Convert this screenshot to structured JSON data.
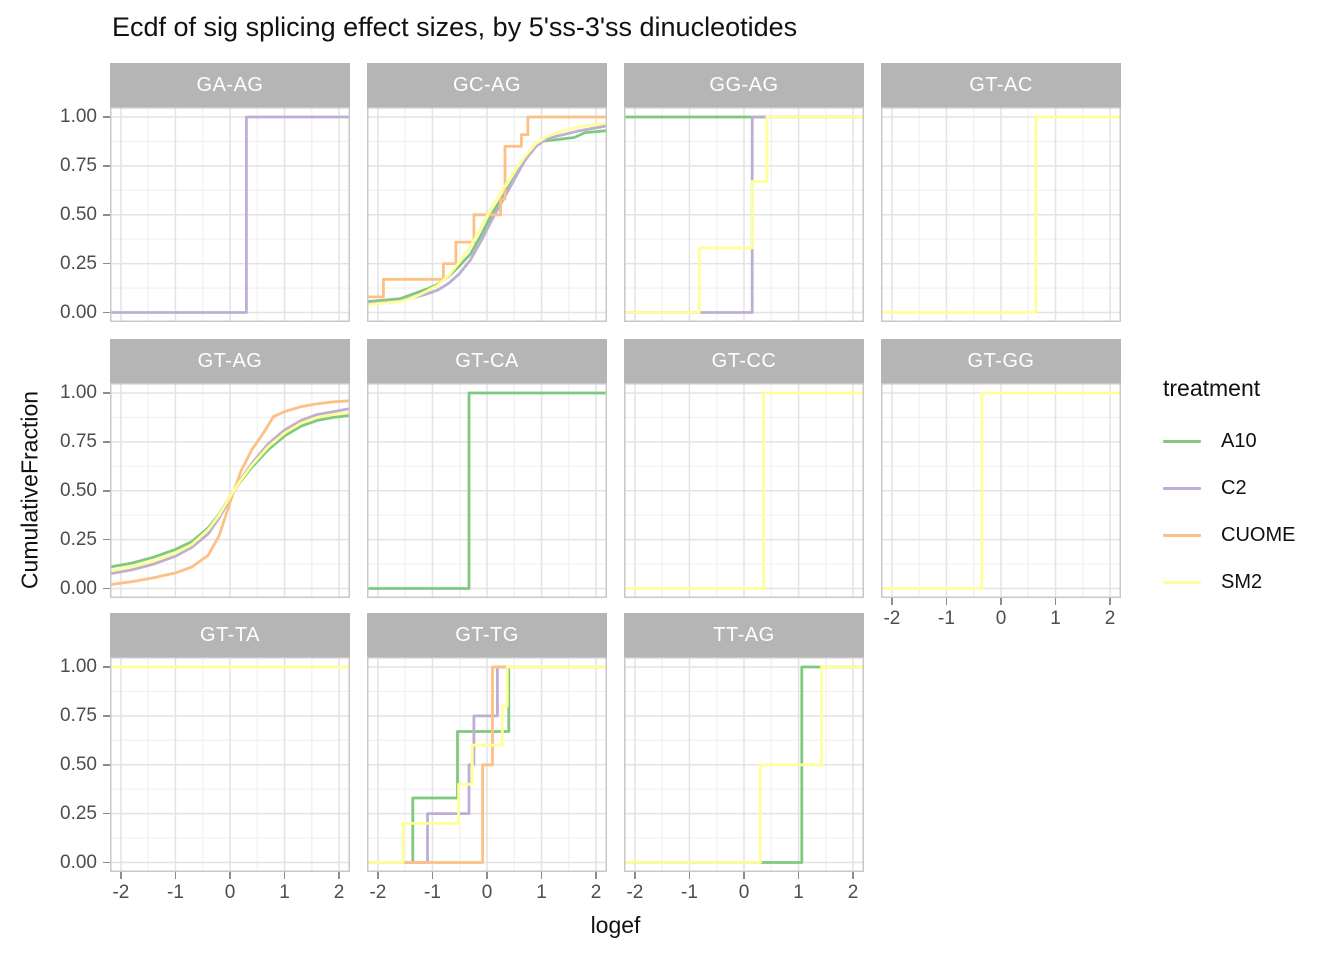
{
  "title": "Ecdf of sig splicing effect sizes, by 5'ss-3'ss dinucleotides",
  "axes": {
    "x_label": "logef",
    "y_label": "CumulativeFraction",
    "x_tick_values": [
      -2,
      -1,
      0,
      1,
      2
    ],
    "x_tick_labels": [
      "-2",
      "-1",
      "0",
      "1",
      "2"
    ],
    "x_minor_values": [
      -1.5,
      -0.5,
      0.5,
      1.5
    ],
    "y_tick_values": [
      0,
      0.25,
      0.5,
      0.75,
      1
    ],
    "y_tick_labels": [
      "0.00",
      "0.25",
      "0.50",
      "0.75",
      "1.00"
    ],
    "y_minor_values": [
      0.125,
      0.375,
      0.625,
      0.875
    ],
    "x_range": [
      -2.2,
      2.2
    ],
    "y_range": [
      0,
      1
    ]
  },
  "legend": {
    "title": "treatment",
    "entries": [
      {
        "label": "A10",
        "color": "#7fc97f"
      },
      {
        "label": "C2",
        "color": "#beaed4"
      },
      {
        "label": "CUOME",
        "color": "#fdc086"
      },
      {
        "label": "SM2",
        "color": "#ffff99"
      }
    ]
  },
  "colors": {
    "A10": "#7fc97f",
    "C2": "#beaed4",
    "CUOME": "#fdc086",
    "SM2": "#ffff99",
    "strip_background": "#b5b5b5",
    "strip_text": "#ffffff",
    "grid_major": "#e3e3e3",
    "grid_minor": "#f0f0f0",
    "panel_border": "#c8c8c8",
    "tick_text": "#4d4d4d"
  },
  "chart_data": {
    "type": "line",
    "subtype": "ecdf-step-facets",
    "title": "Ecdf of sig splicing effect sizes, by 5'ss-3'ss dinucleotides",
    "xlabel": "logef",
    "ylabel": "CumulativeFraction",
    "xlim": [
      -2.2,
      2.2
    ],
    "ylim": [
      0,
      1
    ],
    "grid": true,
    "legend_position": "right",
    "panels": [
      {
        "facet": "GA-AG",
        "row": 1,
        "col": 1,
        "y_axis": true,
        "series": [
          {
            "name": "C2",
            "kind": "step",
            "start": 0,
            "points": [
              [
                0.3,
                1
              ]
            ]
          }
        ]
      },
      {
        "facet": "GC-AG",
        "row": 1,
        "col": 2,
        "series": [
          {
            "name": "A10",
            "kind": "line",
            "points": [
              [
                -2.2,
                0.055
              ],
              [
                -1.6,
                0.07
              ],
              [
                -1.35,
                0.095
              ],
              [
                -1.1,
                0.12
              ],
              [
                -0.9,
                0.145
              ],
              [
                -0.7,
                0.185
              ],
              [
                -0.5,
                0.24
              ],
              [
                -0.3,
                0.3
              ],
              [
                -0.1,
                0.4
              ],
              [
                0.1,
                0.51
              ],
              [
                0.3,
                0.6
              ],
              [
                0.5,
                0.69
              ],
              [
                0.7,
                0.78
              ],
              [
                0.85,
                0.85
              ],
              [
                1.0,
                0.875
              ],
              [
                1.3,
                0.885
              ],
              [
                1.6,
                0.895
              ],
              [
                1.8,
                0.92
              ],
              [
                2.2,
                0.93
              ]
            ]
          },
          {
            "name": "C2",
            "kind": "line",
            "points": [
              [
                -2.2,
                0.045
              ],
              [
                -1.6,
                0.06
              ],
              [
                -1.35,
                0.075
              ],
              [
                -1.1,
                0.095
              ],
              [
                -0.9,
                0.115
              ],
              [
                -0.7,
                0.15
              ],
              [
                -0.5,
                0.2
              ],
              [
                -0.3,
                0.27
              ],
              [
                -0.1,
                0.37
              ],
              [
                0.1,
                0.48
              ],
              [
                0.3,
                0.58
              ],
              [
                0.5,
                0.68
              ],
              [
                0.7,
                0.78
              ],
              [
                0.9,
                0.85
              ],
              [
                1.1,
                0.89
              ],
              [
                1.4,
                0.91
              ],
              [
                1.7,
                0.93
              ],
              [
                2.2,
                0.955
              ]
            ]
          },
          {
            "name": "CUOME",
            "kind": "step",
            "start": 0.08,
            "points": [
              [
                -1.9,
                0.17
              ],
              [
                -0.8,
                0.25
              ],
              [
                -0.57,
                0.36
              ],
              [
                -0.24,
                0.5
              ],
              [
                0.25,
                0.58
              ],
              [
                0.33,
                0.85
              ],
              [
                0.63,
                0.91
              ],
              [
                0.75,
                1
              ]
            ]
          },
          {
            "name": "SM2",
            "kind": "line",
            "points": [
              [
                -2.2,
                0.04
              ],
              [
                -1.6,
                0.055
              ],
              [
                -1.35,
                0.075
              ],
              [
                -1.1,
                0.11
              ],
              [
                -0.9,
                0.14
              ],
              [
                -0.7,
                0.19
              ],
              [
                -0.5,
                0.26
              ],
              [
                -0.3,
                0.34
              ],
              [
                -0.1,
                0.44
              ],
              [
                0.1,
                0.545
              ],
              [
                0.3,
                0.635
              ],
              [
                0.5,
                0.72
              ],
              [
                0.7,
                0.8
              ],
              [
                0.9,
                0.865
              ],
              [
                1.1,
                0.9
              ],
              [
                1.4,
                0.93
              ],
              [
                1.7,
                0.95
              ],
              [
                2.2,
                0.97
              ]
            ]
          }
        ]
      },
      {
        "facet": "GG-AG",
        "row": 1,
        "col": 3,
        "series": [
          {
            "name": "A10",
            "kind": "const",
            "value": 1
          },
          {
            "name": "C2",
            "kind": "step",
            "start": 0,
            "points": [
              [
                0.15,
                1
              ]
            ]
          },
          {
            "name": "SM2",
            "kind": "step",
            "start": 0,
            "points": [
              [
                -0.82,
                0.33
              ],
              [
                0.15,
                0.67
              ],
              [
                0.42,
                1
              ]
            ]
          }
        ]
      },
      {
        "facet": "GT-AC",
        "row": 1,
        "col": 4,
        "series": [
          {
            "name": "SM2",
            "kind": "step",
            "start": 0,
            "points": [
              [
                0.64,
                1
              ]
            ]
          }
        ]
      },
      {
        "facet": "GT-AG",
        "row": 2,
        "col": 1,
        "y_axis": true,
        "series": [
          {
            "name": "A10",
            "kind": "line",
            "points": [
              [
                -2.2,
                0.11
              ],
              [
                -1.8,
                0.13
              ],
              [
                -1.4,
                0.16
              ],
              [
                -1.0,
                0.2
              ],
              [
                -0.7,
                0.24
              ],
              [
                -0.4,
                0.31
              ],
              [
                -0.2,
                0.38
              ],
              [
                0,
                0.47
              ],
              [
                0.2,
                0.55
              ],
              [
                0.4,
                0.62
              ],
              [
                0.7,
                0.71
              ],
              [
                1.0,
                0.78
              ],
              [
                1.3,
                0.83
              ],
              [
                1.6,
                0.86
              ],
              [
                1.9,
                0.875
              ],
              [
                2.2,
                0.885
              ]
            ]
          },
          {
            "name": "C2",
            "kind": "line",
            "points": [
              [
                -2.2,
                0.075
              ],
              [
                -1.8,
                0.095
              ],
              [
                -1.4,
                0.125
              ],
              [
                -1.0,
                0.165
              ],
              [
                -0.7,
                0.21
              ],
              [
                -0.4,
                0.28
              ],
              [
                -0.2,
                0.36
              ],
              [
                0,
                0.46
              ],
              [
                0.2,
                0.56
              ],
              [
                0.4,
                0.64
              ],
              [
                0.7,
                0.74
              ],
              [
                1.0,
                0.81
              ],
              [
                1.3,
                0.86
              ],
              [
                1.6,
                0.89
              ],
              [
                1.9,
                0.905
              ],
              [
                2.2,
                0.92
              ]
            ]
          },
          {
            "name": "CUOME",
            "kind": "line",
            "points": [
              [
                -2.2,
                0.02
              ],
              [
                -1.8,
                0.035
              ],
              [
                -1.4,
                0.055
              ],
              [
                -1.0,
                0.08
              ],
              [
                -0.7,
                0.11
              ],
              [
                -0.4,
                0.17
              ],
              [
                -0.2,
                0.27
              ],
              [
                0,
                0.44
              ],
              [
                0.2,
                0.6
              ],
              [
                0.4,
                0.71
              ],
              [
                0.6,
                0.79
              ],
              [
                0.8,
                0.88
              ],
              [
                1.0,
                0.905
              ],
              [
                1.3,
                0.93
              ],
              [
                1.6,
                0.945
              ],
              [
                1.9,
                0.955
              ],
              [
                2.2,
                0.96
              ]
            ]
          },
          {
            "name": "SM2",
            "kind": "line",
            "points": [
              [
                -2.2,
                0.09
              ],
              [
                -1.8,
                0.11
              ],
              [
                -1.4,
                0.14
              ],
              [
                -1.0,
                0.18
              ],
              [
                -0.7,
                0.225
              ],
              [
                -0.4,
                0.3
              ],
              [
                -0.2,
                0.375
              ],
              [
                0,
                0.47
              ],
              [
                0.2,
                0.555
              ],
              [
                0.4,
                0.63
              ],
              [
                0.7,
                0.725
              ],
              [
                1.0,
                0.795
              ],
              [
                1.3,
                0.845
              ],
              [
                1.6,
                0.875
              ],
              [
                1.9,
                0.89
              ],
              [
                2.2,
                0.9
              ]
            ]
          }
        ]
      },
      {
        "facet": "GT-CA",
        "row": 2,
        "col": 2,
        "series": [
          {
            "name": "A10",
            "kind": "step",
            "start": 0,
            "points": [
              [
                -0.33,
                1
              ]
            ]
          }
        ]
      },
      {
        "facet": "GT-CC",
        "row": 2,
        "col": 3,
        "series": [
          {
            "name": "SM2",
            "kind": "step",
            "start": 0,
            "points": [
              [
                0.36,
                1
              ]
            ]
          }
        ]
      },
      {
        "facet": "GT-GG",
        "row": 2,
        "col": 4,
        "x_axis": true,
        "series": [
          {
            "name": "SM2",
            "kind": "step",
            "start": 0,
            "points": [
              [
                -0.35,
                1
              ]
            ]
          }
        ]
      },
      {
        "facet": "GT-TA",
        "row": 3,
        "col": 1,
        "x_axis": true,
        "y_axis": true,
        "series": [
          {
            "name": "SM2",
            "kind": "const",
            "value": 1
          }
        ]
      },
      {
        "facet": "GT-TG",
        "row": 3,
        "col": 2,
        "x_axis": true,
        "series": [
          {
            "name": "A10",
            "kind": "step",
            "start": 0,
            "points": [
              [
                -1.36,
                0.33
              ],
              [
                -0.54,
                0.67
              ],
              [
                0.4,
                1
              ]
            ]
          },
          {
            "name": "C2",
            "kind": "step",
            "start": 0,
            "points": [
              [
                -1.09,
                0.25
              ],
              [
                -0.33,
                0.5
              ],
              [
                -0.24,
                0.75
              ],
              [
                0.19,
                1
              ]
            ]
          },
          {
            "name": "CUOME",
            "kind": "step",
            "start": 0,
            "points": [
              [
                -0.08,
                0.5
              ],
              [
                0.1,
                1
              ]
            ]
          },
          {
            "name": "SM2",
            "kind": "step",
            "start": 0,
            "points": [
              [
                -1.54,
                0.2
              ],
              [
                -0.52,
                0.4
              ],
              [
                -0.27,
                0.6
              ],
              [
                0.28,
                0.8
              ],
              [
                0.37,
                1
              ]
            ]
          }
        ]
      },
      {
        "facet": "TT-AG",
        "row": 3,
        "col": 3,
        "x_axis": true,
        "series": [
          {
            "name": "A10",
            "kind": "step",
            "start": 0,
            "points": [
              [
                1.06,
                1
              ]
            ]
          },
          {
            "name": "SM2",
            "kind": "step",
            "start": 0,
            "points": [
              [
                0.3,
                0.5
              ],
              [
                1.42,
                1
              ]
            ]
          }
        ]
      }
    ]
  }
}
